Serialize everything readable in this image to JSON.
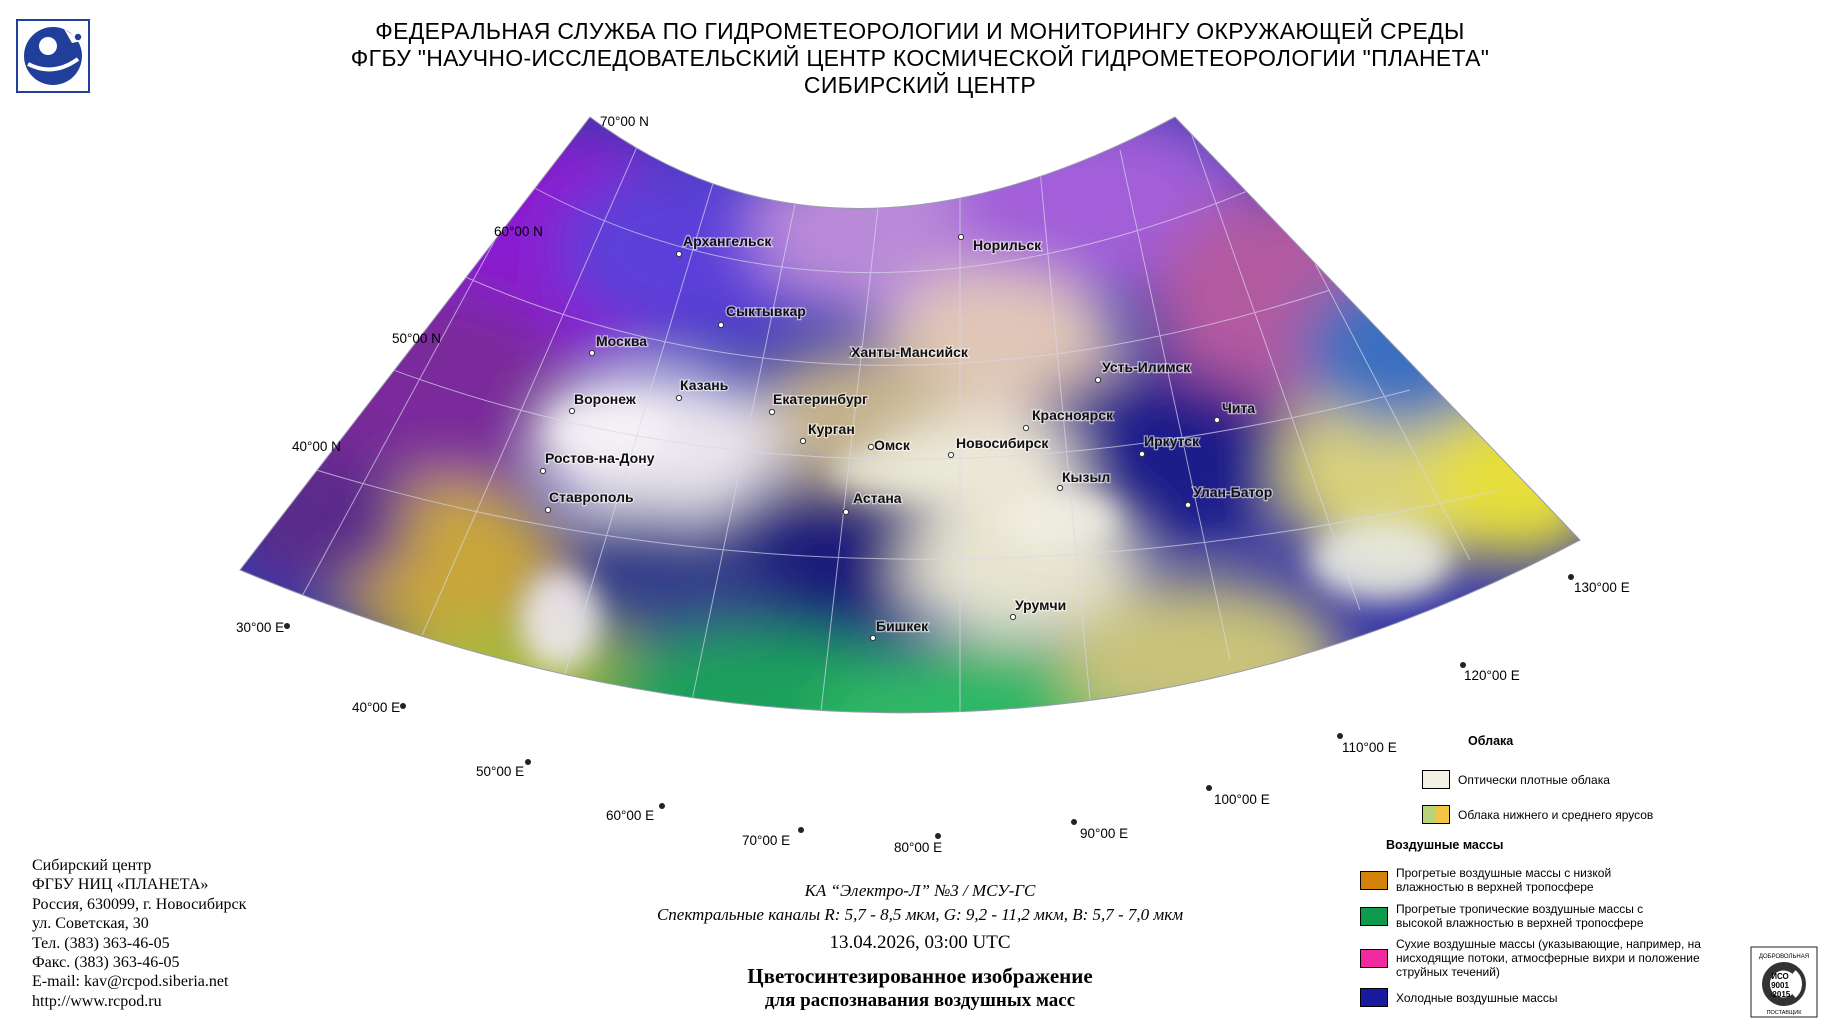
{
  "header": {
    "line1": "ФЕДЕРАЛЬНАЯ СЛУЖБА ПО ГИДРОМЕТЕОРОЛОГИИ И МОНИТОРИНГУ ОКРУЖАЮЩЕЙ СРЕДЫ",
    "line2": "ФГБУ \"НАУЧНО-ИССЛЕДОВАТЕЛЬСКИЙ ЦЕНТР КОСМИЧЕСКОЙ ГИДРОМЕТЕОРОЛОГИИ \"ПЛАНЕТА\"",
    "line3": "СИБИРСКИЙ ЦЕНТР"
  },
  "map": {
    "latitudes": [
      "70°00 N",
      "60°00 N",
      "50°00 N",
      "40°00 N"
    ],
    "longitudes": [
      "30°00 E",
      "40°00 E",
      "50°00 E",
      "60°00 E",
      "70°00 E",
      "80°00 E",
      "90°00 E",
      "100°00 E",
      "110°00 E",
      "120°00 E",
      "130°00 E"
    ],
    "cities": [
      "Архангельск",
      "Норильск",
      "Сыктывкар",
      "Москва",
      "Ханты-Мансийск",
      "Усть-Илимск",
      "Казань",
      "Воронеж",
      "Екатеринбург",
      "Красноярск",
      "Чита",
      "Курган",
      "Омск",
      "Новосибирск",
      "Иркутск",
      "Ростов-на-Дону",
      "Кызыл",
      "Улан-Батор",
      "Ставрополь",
      "Астана",
      "Урумчи",
      "Бишкек"
    ]
  },
  "contact": {
    "line1": "Сибирский центр",
    "line2": "ФГБУ НИЦ «ПЛАНЕТА»",
    "line3": "Россия, 630099, г. Новосибирск",
    "line4": "ул. Советская, 30",
    "line5": "Тел. (383) 363-46-05",
    "line6": "Факс. (383) 363-46-05",
    "line7": "E-mail: kav@rcpod.siberia.net",
    "line8": "http://www.rcpod.ru"
  },
  "caption": {
    "satellite": "КА “Электро-Л” №3 / МСУ-ГС",
    "channels": "Спектральные каналы R: 5,7 - 8,5 мкм, G: 9,2 - 11,2 мкм, B: 5,7 - 7,0 мкм",
    "datetime": "13.04.2026, 03:00 UTC",
    "title1": "Цветосинтезированное изображение",
    "title2": "для распознавания воздушных масс"
  },
  "legend": {
    "clouds_title": "Облака",
    "dense_clouds": "Оптически плотные облака",
    "low_mid_clouds": "Облака нижнего и среднего ярусов",
    "air_masses_title": "Воздушные массы",
    "warm_low_humidity": "Прогретые воздушные массы с низкой влажностью в верхней тропосфере",
    "warm_tropical": "Прогретые тропичеcкие воздушные массы с высокой влажностью в верхней тропосфере",
    "dry": "Сухие воздушные массы (указывающие, например, на нисходящие потоки, атмосферные вихри и положение струйных течений)",
    "cold": "Холодные воздушные массы",
    "colors": {
      "dense": "#f2f1e4",
      "low_mid_a": "#b9d37a",
      "low_mid_b": "#f2c448",
      "warm_low_humidity": "#d4830a",
      "warm_tropical": "#0f9b4e",
      "dry": "#f22aa0",
      "cold": "#1a1aa0"
    }
  },
  "stamp": {
    "top": "ДОБРОВОЛЬНАЯ",
    "mid1": "ИСО",
    "mid2": "9001",
    "mid3": "-2015",
    "bottom": "ПОСТАВЩИК"
  }
}
